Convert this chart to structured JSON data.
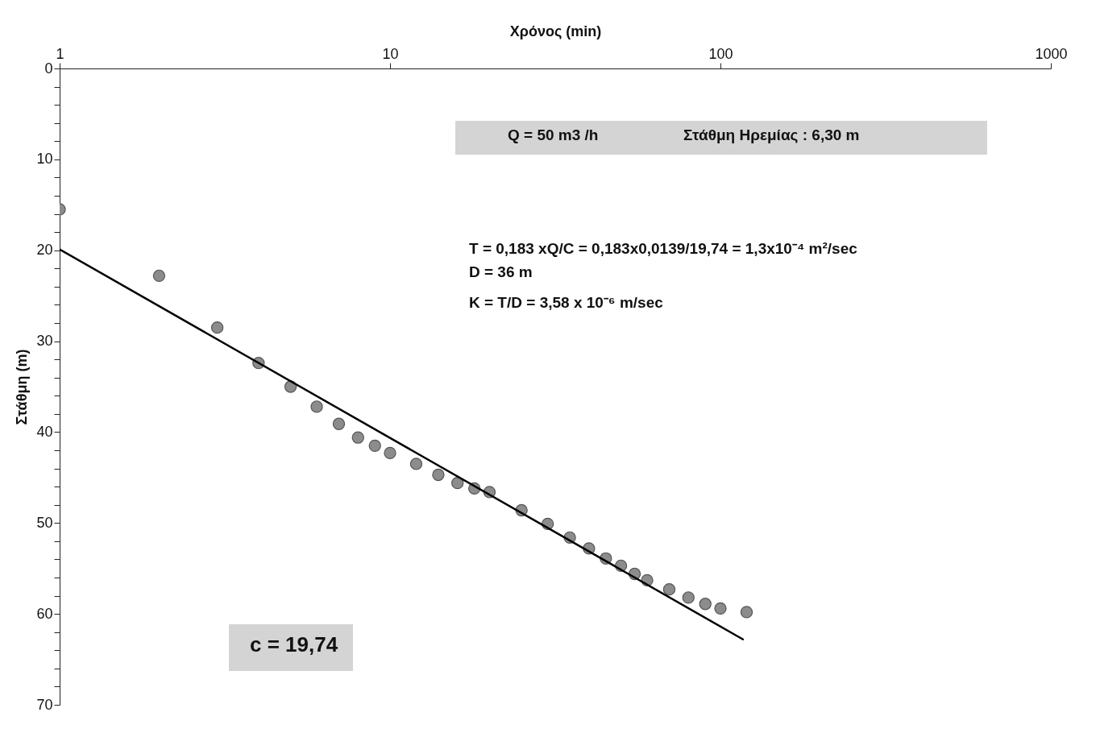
{
  "chart_data": {
    "type": "scatter",
    "xlabel": "Χρόνος (min)",
    "ylabel": "Στάθμη (m)",
    "log": "x",
    "xlim": [
      1,
      1000
    ],
    "xticks": [
      1,
      10,
      100,
      1000
    ],
    "ylim": [
      70,
      0
    ],
    "yticks": [
      0,
      {
        "value": 2,
        "label": null
      },
      {
        "value": 4,
        "label": null
      },
      {
        "value": 6,
        "label": null
      },
      {
        "value": 8,
        "label": null
      },
      10,
      {
        "value": 12,
        "label": null
      },
      {
        "value": 14,
        "label": null
      },
      {
        "value": 16,
        "label": null
      },
      {
        "value": 18,
        "label": null
      },
      20,
      {
        "value": 22,
        "label": null
      },
      {
        "value": 24,
        "label": null
      },
      {
        "value": 26,
        "label": null
      },
      {
        "value": 28,
        "label": null
      },
      30,
      {
        "value": 32,
        "label": null
      },
      {
        "value": 34,
        "label": null
      },
      {
        "value": 36,
        "label": null
      },
      {
        "value": 38,
        "label": null
      },
      40,
      {
        "value": 42,
        "label": null
      },
      {
        "value": 44,
        "label": null
      },
      {
        "value": 46,
        "label": null
      },
      {
        "value": 48,
        "label": null
      },
      50,
      {
        "value": 52,
        "label": null
      },
      {
        "value": 54,
        "label": null
      },
      {
        "value": 56,
        "label": null
      },
      {
        "value": 58,
        "label": null
      },
      60,
      {
        "value": 62,
        "label": null
      },
      {
        "value": 64,
        "label": null
      },
      {
        "value": 66,
        "label": null
      },
      {
        "value": 68,
        "label": null
      },
      70
    ],
    "grid": false,
    "marker": "circle",
    "series": [
      {
        "color": "#8c8c8c",
        "x": [
          1,
          2,
          3,
          4,
          5,
          6,
          7,
          8,
          9,
          10,
          12,
          14,
          16,
          18,
          20,
          25,
          30,
          35,
          40,
          45,
          50,
          55,
          60,
          70,
          80,
          90,
          100,
          120
        ],
        "values": [
          15.5,
          22.8,
          28.5,
          32.4,
          35.0,
          37.2,
          39.1,
          40.6,
          41.5,
          42.3,
          43.5,
          44.7,
          45.6,
          46.2,
          46.6,
          48.6,
          50.1,
          51.6,
          52.8,
          53.9,
          54.7,
          55.6,
          56.3,
          57.3,
          58.2,
          58.9,
          59.4,
          59.8
        ]
      },
      {
        "type": "line",
        "marker": "none",
        "color": "#000000",
        "x": [
          1,
          117
        ],
        "values": [
          19.9,
          62.8
        ]
      }
    ],
    "annotations": [
      "Q = 50 m3 /h",
      "Στάθμη Ηρεμίας : 6,30 m",
      "T = 0,183 xQ/C = 0,183x0,0139/19,74 = 1,3x10⁻⁴ m²/sec",
      "D = 36 m",
      "K = T/D = 3,58 x 10⁻⁶ m/sec",
      "c = 19,74"
    ]
  }
}
